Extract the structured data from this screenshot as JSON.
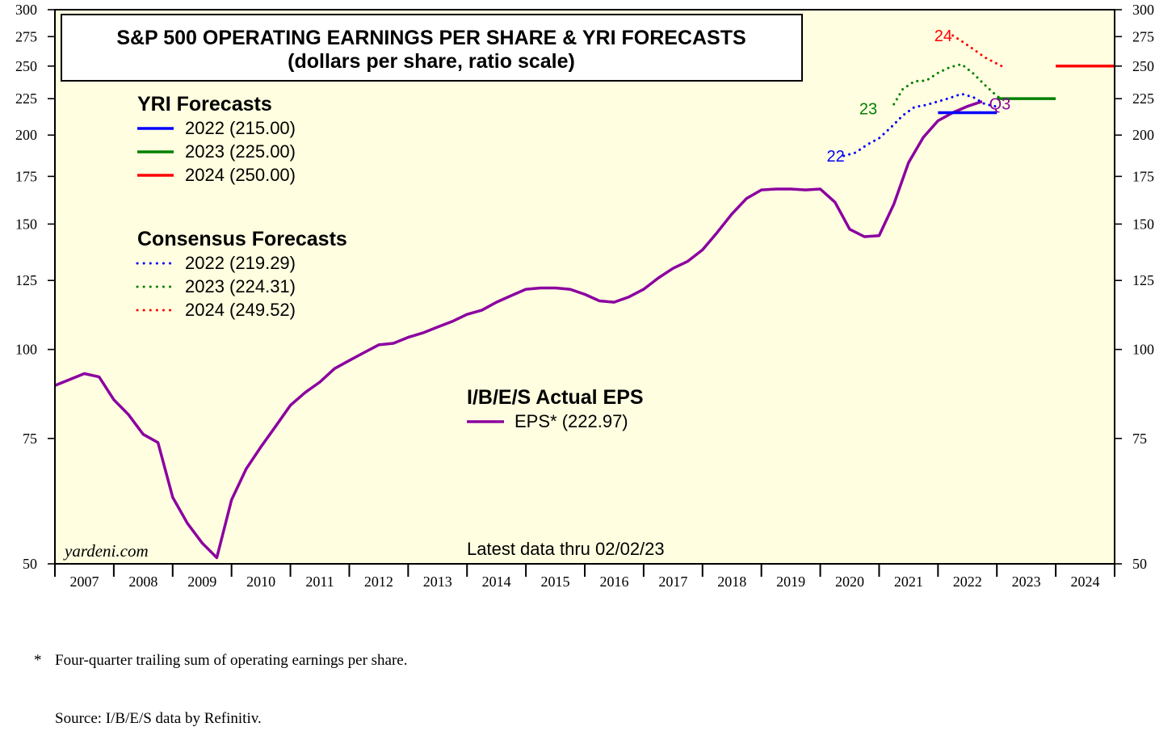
{
  "chart_data": {
    "type": "line",
    "title": "S&P 500 OPERATING EARNINGS PER SHARE & YRI FORECASTS",
    "subtitle": "(dollars per share, ratio scale)",
    "y_scale": "log",
    "ylim": [
      50,
      300
    ],
    "y_ticks": [
      50,
      75,
      100,
      125,
      150,
      175,
      200,
      225,
      250,
      275,
      300
    ],
    "x_years": [
      "2007",
      "2008",
      "2009",
      "2010",
      "2011",
      "2012",
      "2013",
      "2014",
      "2015",
      "2016",
      "2017",
      "2018",
      "2019",
      "2020",
      "2021",
      "2022",
      "2023",
      "2024"
    ],
    "xlim": [
      2007,
      2025
    ],
    "colors": {
      "background": "#fffee0",
      "eps": "#8b00a0",
      "y2022": "#0000ff",
      "y2023": "#008000",
      "y2024": "#ff0000"
    },
    "legend_yri": {
      "heading": "YRI Forecasts",
      "items": [
        {
          "label": "2022 (215.00)",
          "color": "#0000ff"
        },
        {
          "label": "2023 (225.00)",
          "color": "#008000"
        },
        {
          "label": "2024 (250.00)",
          "color": "#ff0000"
        }
      ]
    },
    "legend_consensus": {
      "heading": "Consensus Forecasts",
      "items": [
        {
          "label": "2022 (219.29)",
          "color": "#0000ff"
        },
        {
          "label": "2023 (224.31)",
          "color": "#008000"
        },
        {
          "label": "2024 (249.52)",
          "color": "#ff0000"
        }
      ]
    },
    "legend_actual": {
      "heading": "I/B/E/S Actual EPS",
      "items": [
        {
          "label": "EPS* (222.97)",
          "color": "#8b00a0"
        }
      ]
    },
    "series": [
      {
        "name": "EPS*",
        "style": "solid",
        "color": "#8b00a0",
        "points": [
          [
            2007.0,
            89.0
          ],
          [
            2007.5,
            92.5
          ],
          [
            2007.75,
            91.5
          ],
          [
            2008.0,
            85.0
          ],
          [
            2008.25,
            81.0
          ],
          [
            2008.5,
            76.0
          ],
          [
            2008.75,
            74.0
          ],
          [
            2009.0,
            62.0
          ],
          [
            2009.25,
            57.0
          ],
          [
            2009.5,
            53.5
          ],
          [
            2009.75,
            51.0
          ],
          [
            2010.0,
            61.5
          ],
          [
            2010.25,
            68.0
          ],
          [
            2010.5,
            73.0
          ],
          [
            2010.75,
            78.0
          ],
          [
            2011.0,
            83.5
          ],
          [
            2011.25,
            87.0
          ],
          [
            2011.5,
            90.0
          ],
          [
            2011.75,
            94.0
          ],
          [
            2012.0,
            96.5
          ],
          [
            2012.25,
            99.0
          ],
          [
            2012.5,
            101.5
          ],
          [
            2012.75,
            102.0
          ],
          [
            2013.0,
            104.0
          ],
          [
            2013.25,
            105.5
          ],
          [
            2013.5,
            107.5
          ],
          [
            2013.75,
            109.5
          ],
          [
            2014.0,
            112.0
          ],
          [
            2014.25,
            113.5
          ],
          [
            2014.5,
            116.5
          ],
          [
            2014.75,
            119.0
          ],
          [
            2015.0,
            121.5
          ],
          [
            2015.25,
            122.0
          ],
          [
            2015.5,
            122.0
          ],
          [
            2015.75,
            121.5
          ],
          [
            2016.0,
            119.5
          ],
          [
            2016.25,
            117.0
          ],
          [
            2016.5,
            116.5
          ],
          [
            2016.75,
            118.5
          ],
          [
            2017.0,
            121.5
          ],
          [
            2017.25,
            126.0
          ],
          [
            2017.5,
            130.0
          ],
          [
            2017.75,
            133.0
          ],
          [
            2018.0,
            138.0
          ],
          [
            2018.25,
            146.0
          ],
          [
            2018.5,
            155.0
          ],
          [
            2018.75,
            163.0
          ],
          [
            2019.0,
            167.5
          ],
          [
            2019.25,
            168.0
          ],
          [
            2019.5,
            168.0
          ],
          [
            2019.75,
            167.5
          ],
          [
            2020.0,
            168.0
          ],
          [
            2020.25,
            161.0
          ],
          [
            2020.5,
            147.5
          ],
          [
            2020.75,
            144.0
          ],
          [
            2021.0,
            144.5
          ],
          [
            2021.25,
            160.0
          ],
          [
            2021.5,
            183.0
          ],
          [
            2021.75,
            198.5
          ],
          [
            2022.0,
            209.5
          ],
          [
            2022.25,
            215.0
          ],
          [
            2022.5,
            219.5
          ],
          [
            2022.75,
            222.97
          ]
        ]
      },
      {
        "name": "YRI 2022",
        "style": "solid",
        "color": "#0000ff",
        "points": [
          [
            2022.0,
            215.0
          ],
          [
            2023.0,
            215.0
          ]
        ]
      },
      {
        "name": "YRI 2023",
        "style": "solid",
        "color": "#008000",
        "points": [
          [
            2023.0,
            225.0
          ],
          [
            2024.0,
            225.0
          ]
        ]
      },
      {
        "name": "YRI 2024",
        "style": "solid",
        "color": "#ff0000",
        "points": [
          [
            2024.0,
            250.0
          ],
          [
            2025.0,
            250.0
          ]
        ]
      },
      {
        "name": "Consensus 2022",
        "style": "dotted",
        "color": "#0000ff",
        "points": [
          [
            2020.4,
            187.0
          ],
          [
            2020.6,
            189.0
          ],
          [
            2020.8,
            194.0
          ],
          [
            2021.0,
            198.0
          ],
          [
            2021.2,
            205.0
          ],
          [
            2021.4,
            213.0
          ],
          [
            2021.6,
            219.0
          ],
          [
            2021.8,
            220.5
          ],
          [
            2022.0,
            223.0
          ],
          [
            2022.2,
            225.5
          ],
          [
            2022.4,
            228.5
          ],
          [
            2022.6,
            226.0
          ],
          [
            2022.8,
            221.0
          ],
          [
            2023.0,
            219.29
          ]
        ]
      },
      {
        "name": "Consensus 2023",
        "style": "dotted",
        "color": "#008000",
        "points": [
          [
            2021.25,
            221.0
          ],
          [
            2021.4,
            232.0
          ],
          [
            2021.6,
            238.0
          ],
          [
            2021.8,
            238.5
          ],
          [
            2022.0,
            244.5
          ],
          [
            2022.2,
            249.0
          ],
          [
            2022.4,
            251.5
          ],
          [
            2022.6,
            244.0
          ],
          [
            2022.8,
            235.0
          ],
          [
            2023.0,
            227.0
          ],
          [
            2023.1,
            224.31
          ]
        ]
      },
      {
        "name": "Consensus 2024",
        "style": "dotted",
        "color": "#ff0000",
        "points": [
          [
            2022.25,
            276.0
          ],
          [
            2022.4,
            271.0
          ],
          [
            2022.6,
            264.0
          ],
          [
            2022.8,
            257.0
          ],
          [
            2023.0,
            252.0
          ],
          [
            2023.1,
            249.52
          ]
        ]
      }
    ],
    "annotations": [
      {
        "text": "22",
        "x": 2020.25,
        "y": 187.0,
        "color": "#0000ff"
      },
      {
        "text": "23",
        "x": 2021.05,
        "y": 222.0,
        "color": "#008000"
      },
      {
        "text": "24",
        "x": 2022.05,
        "y": 276.0,
        "color": "#ff0000"
      },
      {
        "text": "Q3",
        "x": 2022.95,
        "y": 222.97,
        "color": "#8b00a0"
      }
    ],
    "latest_note": "Latest data thru 02/02/23",
    "watermark": "yardeni.com"
  },
  "footnote": {
    "star": "*",
    "line1": "Four-quarter trailing sum of operating earnings per share.",
    "line2": "Source: I/B/E/S data by Refinitiv."
  }
}
